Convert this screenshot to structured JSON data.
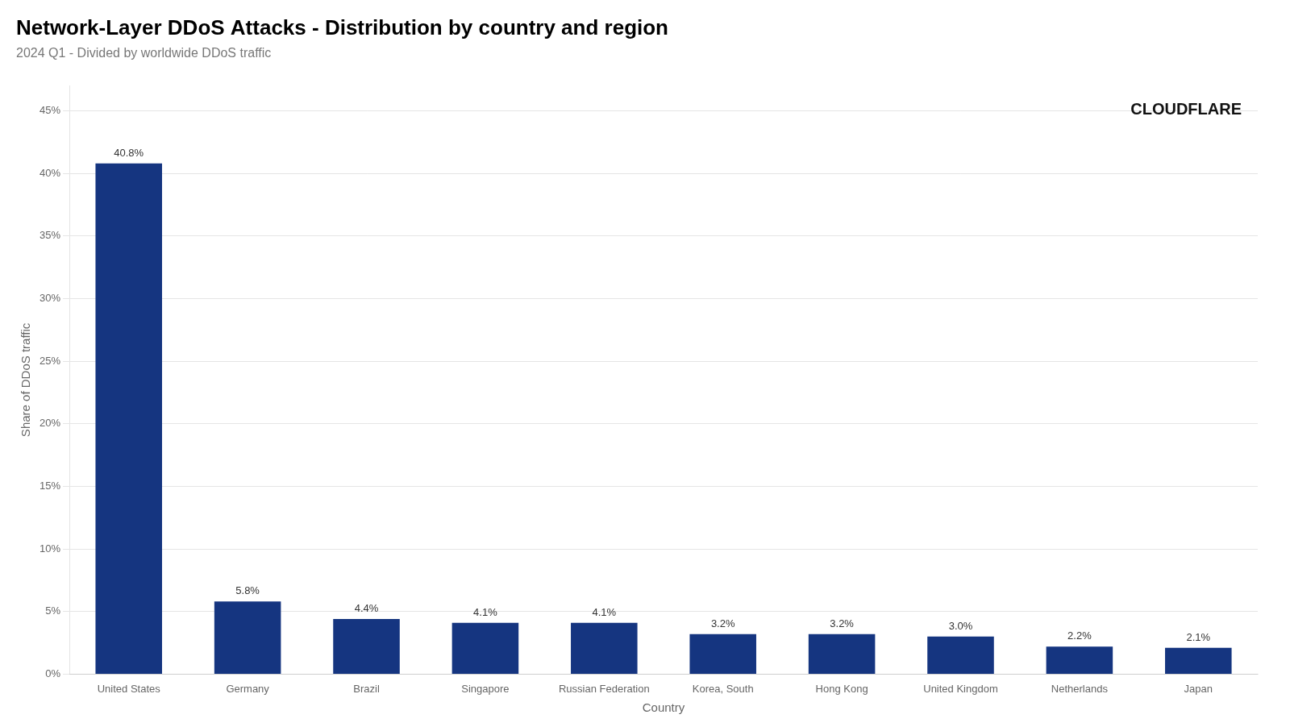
{
  "chart_data": {
    "type": "bar",
    "title": "Network-Layer DDoS Attacks - Distribution by country and region",
    "subtitle": "2024 Q1 - Divided by worldwide DDoS traffic",
    "xlabel": "Country",
    "ylabel": "Share of DDoS traffic",
    "annotation": "CLOUDFLARE",
    "categories": [
      "United States",
      "Germany",
      "Brazil",
      "Singapore",
      "Russian Federation",
      "Korea, South",
      "Hong Kong",
      "United Kingdom",
      "Netherlands",
      "Japan"
    ],
    "values": [
      40.8,
      5.8,
      4.4,
      4.1,
      4.1,
      3.2,
      3.2,
      3.0,
      2.2,
      2.1
    ],
    "value_labels": [
      "40.8%",
      "5.8%",
      "4.4%",
      "4.1%",
      "4.1%",
      "3.2%",
      "3.2%",
      "3.0%",
      "2.2%",
      "2.1%"
    ],
    "data_labels": true,
    "color": "#153580",
    "ylim": [
      0,
      47
    ],
    "yticks": [
      {
        "value": 0,
        "label": "0%"
      },
      {
        "value": 5,
        "label": "5%"
      },
      {
        "value": 10,
        "label": "10%"
      },
      {
        "value": 15,
        "label": "15%"
      },
      {
        "value": 20,
        "label": "20%"
      },
      {
        "value": 25,
        "label": "25%"
      },
      {
        "value": 30,
        "label": "30%"
      },
      {
        "value": 35,
        "label": "35%"
      },
      {
        "value": 40,
        "label": "40%"
      },
      {
        "value": 45,
        "label": "45%"
      }
    ],
    "grid": true
  }
}
